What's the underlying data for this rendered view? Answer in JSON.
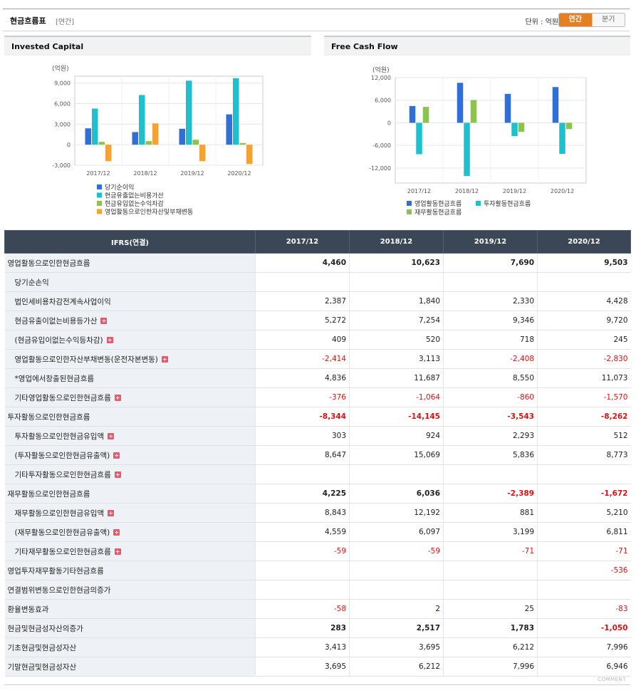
{
  "header": {
    "title": "현금흐름표",
    "subtitle": "[연간]",
    "unit": "단위 : 억원",
    "tab_annual": "연간",
    "tab_quarter": "분기"
  },
  "colors": {
    "blue": "#2e6fd8",
    "cyan": "#1ec0cf",
    "green": "#8cc34a",
    "orange": "#f5a233"
  },
  "charts": [
    {
      "panel_title": "Invested Capital",
      "chart_data": {
        "type": "bar",
        "yunit": "(억원)",
        "categories": [
          "2017/12",
          "2018/12",
          "2019/12",
          "2020/12"
        ],
        "ylim": [
          -3000,
          10000
        ],
        "yticks": [
          {
            "v": 9000,
            "label": "9,000"
          },
          {
            "v": 6000,
            "label": "6,000"
          },
          {
            "v": 3000,
            "label": "3,000"
          },
          {
            "v": 0,
            "label": "0"
          },
          {
            "v": -3000,
            "label": "-3,000"
          }
        ],
        "grid": true,
        "legend_position": "bottom",
        "series": [
          {
            "name": "당기순이익",
            "color": "#2e6fd8",
            "values": [
              2387,
              1840,
              2330,
              4428
            ]
          },
          {
            "name": "현금유출없는비용가산",
            "color": "#1ec0cf",
            "values": [
              5272,
              7254,
              9346,
              9720
            ]
          },
          {
            "name": "현금유입없는수익차감",
            "color": "#8cc34a",
            "values": [
              409,
              520,
              718,
              245
            ]
          },
          {
            "name": "영업활동으로인한자산및부채변동",
            "color": "#f5a233",
            "values": [
              -2414,
              3113,
              -2408,
              -2830
            ]
          }
        ]
      }
    },
    {
      "panel_title": "Free Cash Flow",
      "chart_data": {
        "type": "bar",
        "yunit": "(억원)",
        "categories": [
          "2017/12",
          "2018/12",
          "2019/12",
          "2020/12"
        ],
        "ylim": [
          -16000,
          12000
        ],
        "yticks": [
          {
            "v": 12000,
            "label": "12,000"
          },
          {
            "v": 6000,
            "label": "6,000"
          },
          {
            "v": 0,
            "label": "0"
          },
          {
            "v": -6000,
            "label": "-6,000"
          },
          {
            "v": -12000,
            "label": "-12,000"
          }
        ],
        "grid": true,
        "legend_position": "bottom",
        "series": [
          {
            "name": "영업활동현금흐름",
            "color": "#2e6fd8",
            "values": [
              4460,
              10623,
              7690,
              9503
            ]
          },
          {
            "name": "투자활동현금흐름",
            "color": "#1ec0cf",
            "values": [
              -8344,
              -14145,
              -3543,
              -8262
            ]
          },
          {
            "name": "재무활동현금흐름",
            "color": "#8cc34a",
            "values": [
              4225,
              6036,
              -2389,
              -1672
            ]
          }
        ]
      }
    }
  ],
  "table": {
    "headers": [
      "IFRS(연결)",
      "2017/12",
      "2018/12",
      "2019/12",
      "2020/12"
    ],
    "rows": [
      {
        "label": "영업활동으로인한현금흐름",
        "values": [
          "4,460",
          "10,623",
          "7,690",
          "9,503"
        ],
        "bold": true,
        "indent": false,
        "plus": false,
        "top": false
      },
      {
        "label": "당기순손익",
        "values": [
          "",
          "",
          "",
          ""
        ],
        "bold": false,
        "indent": true,
        "plus": false,
        "top": false
      },
      {
        "label": "법인세비용차감전계속사업이익",
        "values": [
          "2,387",
          "1,840",
          "2,330",
          "4,428"
        ],
        "bold": false,
        "indent": true,
        "plus": false,
        "top": false
      },
      {
        "label": "현금유출이없는비용등가산",
        "values": [
          "5,272",
          "7,254",
          "9,346",
          "9,720"
        ],
        "bold": false,
        "indent": true,
        "plus": true,
        "top": false
      },
      {
        "label": "(현금유입이없는수익등차감)",
        "values": [
          "409",
          "520",
          "718",
          "245"
        ],
        "bold": false,
        "indent": true,
        "plus": true,
        "top": false
      },
      {
        "label": "영업활동으로인한자산부채변동(운전자본변동)",
        "values": [
          "-2,414",
          "3,113",
          "-2,408",
          "-2,830"
        ],
        "bold": false,
        "indent": true,
        "plus": true,
        "top": false
      },
      {
        "label": "*영업에서창출된현금흐름",
        "values": [
          "4,836",
          "11,687",
          "8,550",
          "11,073"
        ],
        "bold": false,
        "indent": true,
        "plus": false,
        "top": false
      },
      {
        "label": "기타영업활동으로인한현금흐름",
        "values": [
          "-376",
          "-1,064",
          "-860",
          "-1,570"
        ],
        "bold": false,
        "indent": true,
        "plus": true,
        "top": false
      },
      {
        "label": "투자활동으로인한현금흐름",
        "values": [
          "-8,344",
          "-14,145",
          "-3,543",
          "-8,262"
        ],
        "bold": true,
        "indent": false,
        "plus": false,
        "top": true
      },
      {
        "label": "투자활동으로인한현금유입액",
        "values": [
          "303",
          "924",
          "2,293",
          "512"
        ],
        "bold": false,
        "indent": true,
        "plus": true,
        "top": false
      },
      {
        "label": "(투자활동으로인한현금유출액)",
        "values": [
          "8,647",
          "15,069",
          "5,836",
          "8,773"
        ],
        "bold": false,
        "indent": true,
        "plus": true,
        "top": false
      },
      {
        "label": "기타투자활동으로인한현금흐름",
        "values": [
          "",
          "",
          "",
          ""
        ],
        "bold": false,
        "indent": true,
        "plus": true,
        "top": false
      },
      {
        "label": "재무활동으로인한현금흐름",
        "values": [
          "4,225",
          "6,036",
          "-2,389",
          "-1,672"
        ],
        "bold": true,
        "indent": false,
        "plus": false,
        "top": true
      },
      {
        "label": "재무활동으로인한현금유입액",
        "values": [
          "8,843",
          "12,192",
          "881",
          "5,210"
        ],
        "bold": false,
        "indent": true,
        "plus": true,
        "top": false
      },
      {
        "label": "(재무활동으로인한현금유출액)",
        "values": [
          "4,559",
          "6,097",
          "3,199",
          "6,811"
        ],
        "bold": false,
        "indent": true,
        "plus": true,
        "top": false
      },
      {
        "label": "기타재무활동으로인한현금흐름",
        "values": [
          "-59",
          "-59",
          "-71",
          "-71"
        ],
        "bold": false,
        "indent": true,
        "plus": true,
        "top": false
      },
      {
        "label": "영업투자재무활동기타현금흐름",
        "values": [
          "",
          "",
          "",
          "-536"
        ],
        "bold": false,
        "indent": false,
        "plus": false,
        "top": true
      },
      {
        "label": "연결범위변동으로인한현금의증가",
        "values": [
          "",
          "",
          "",
          ""
        ],
        "bold": false,
        "indent": false,
        "plus": false,
        "top": false
      },
      {
        "label": "환율변동효과",
        "values": [
          "-58",
          "2",
          "25",
          "-83"
        ],
        "bold": false,
        "indent": false,
        "plus": false,
        "top": false
      },
      {
        "label": "현금및현금성자산의증가",
        "values": [
          "283",
          "2,517",
          "1,783",
          "-1,050"
        ],
        "bold": true,
        "indent": false,
        "plus": false,
        "top": false
      },
      {
        "label": "기초현금및현금성자산",
        "values": [
          "3,413",
          "3,695",
          "6,212",
          "7,996"
        ],
        "bold": false,
        "indent": false,
        "plus": false,
        "top": false
      },
      {
        "label": "기말현금및현금성자산",
        "values": [
          "3,695",
          "6,212",
          "7,996",
          "6,946"
        ],
        "bold": false,
        "indent": false,
        "plus": false,
        "top": false
      }
    ]
  },
  "footer": {
    "comment": "COMMENT"
  }
}
